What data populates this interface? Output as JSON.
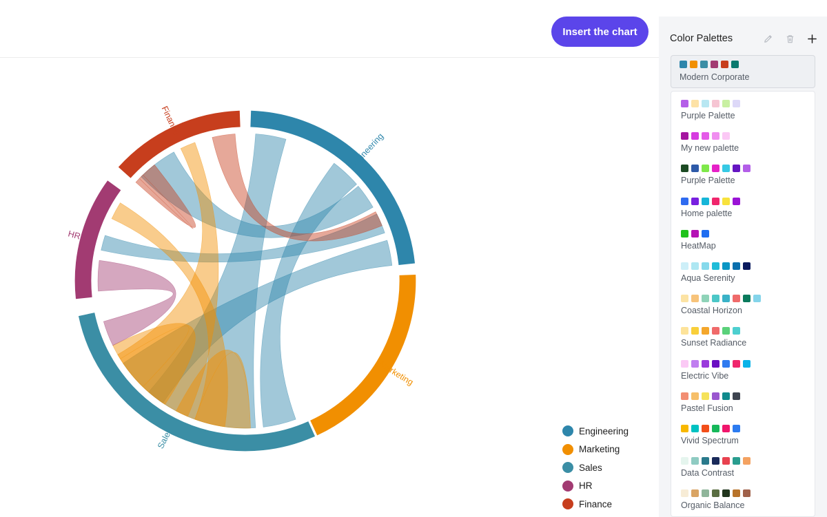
{
  "toolbar": {
    "insert_label": "Insert the chart"
  },
  "chart_data": {
    "type": "chord",
    "groups": [
      "Engineering",
      "Marketing",
      "Sales",
      "HR",
      "Finance"
    ],
    "colors": [
      "#2e86ab",
      "#f18f01",
      "#3b8ea5",
      "#a23b72",
      "#c73e1d"
    ]
  },
  "legend": [
    {
      "label": "Engineering",
      "color": "#2e86ab"
    },
    {
      "label": "Marketing",
      "color": "#f18f01"
    },
    {
      "label": "Sales",
      "color": "#3b8ea5"
    },
    {
      "label": "HR",
      "color": "#a23b72"
    },
    {
      "label": "Finance",
      "color": "#c73e1d"
    }
  ],
  "panel": {
    "title": "Color Palettes",
    "icons": [
      "pencil-icon",
      "trash-icon",
      "plus-icon"
    ],
    "selected": {
      "name": "Modern Corporate",
      "colors": [
        "#2e86ab",
        "#f18f01",
        "#3b8ea5",
        "#a23b72",
        "#c73e1d",
        "#0b7a6f"
      ]
    },
    "palettes": [
      {
        "name": "Purple Palette",
        "colors": [
          "#b45ee8",
          "#fde2a6",
          "#b8e7f2",
          "#f6c5d3",
          "#c8f0a2",
          "#ddd8f8"
        ]
      },
      {
        "name": "My new palette",
        "colors": [
          "#a4159f",
          "#d63ce0",
          "#e45be8",
          "#f08ef0",
          "#fbc8f5"
        ]
      },
      {
        "name": "Purple Palette",
        "colors": [
          "#1c4a23",
          "#2e5aa8",
          "#7fe84a",
          "#e621c7",
          "#36c9e4",
          "#6515c2",
          "#b35ee8"
        ]
      },
      {
        "name": "Home palette",
        "colors": [
          "#2f6bf0",
          "#7820e0",
          "#16b6d8",
          "#f0266c",
          "#f8e23c",
          "#9a13d6"
        ]
      },
      {
        "name": "HeatMap",
        "colors": [
          "#1fc21b",
          "#b513b5",
          "#1f6df0"
        ]
      },
      {
        "name": "Aqua Serenity",
        "colors": [
          "#cdeff8",
          "#aee7f2",
          "#86d9eb",
          "#20bcd8",
          "#0a96c4",
          "#0a6fad",
          "#0a1a5e"
        ]
      },
      {
        "name": "Coastal Horizon",
        "colors": [
          "#fce3a4",
          "#f7c37a",
          "#8fd3b8",
          "#4cc7c7",
          "#3ab2c7",
          "#ef6a6a",
          "#0a7a5c",
          "#84d4ea"
        ]
      },
      {
        "name": "Sunset Radiance",
        "colors": [
          "#fde39a",
          "#f9cf3a",
          "#f4a72c",
          "#f06a6a",
          "#5ad17a",
          "#4dcfcf"
        ]
      },
      {
        "name": "Electric Vibe",
        "colors": [
          "#fbc9f5",
          "#c07ff0",
          "#9a3bdc",
          "#6a0fc2",
          "#2f7bf0",
          "#f0266c",
          "#0ab3e8"
        ]
      },
      {
        "name": "Pastel Fusion",
        "colors": [
          "#f28e73",
          "#f6bf6a",
          "#f5e25a",
          "#9a57cf",
          "#108a8c",
          "#3e4450"
        ]
      },
      {
        "name": "Vivid Spectrum",
        "colors": [
          "#f8b800",
          "#00c2c2",
          "#f24e1a",
          "#16b85a",
          "#f0166c",
          "#2c7bf0"
        ]
      },
      {
        "name": "Data Contrast",
        "colors": [
          "#e5f5ee",
          "#8fcbc2",
          "#2a7a8c",
          "#1a2a5a",
          "#e8424f",
          "#2a9d8f",
          "#f4a261"
        ]
      },
      {
        "name": "Organic Balance",
        "colors": [
          "#f7ecd6",
          "#d9a464",
          "#8fb59a",
          "#5a6e42",
          "#22361e",
          "#b8732a",
          "#a0614a"
        ]
      }
    ]
  }
}
